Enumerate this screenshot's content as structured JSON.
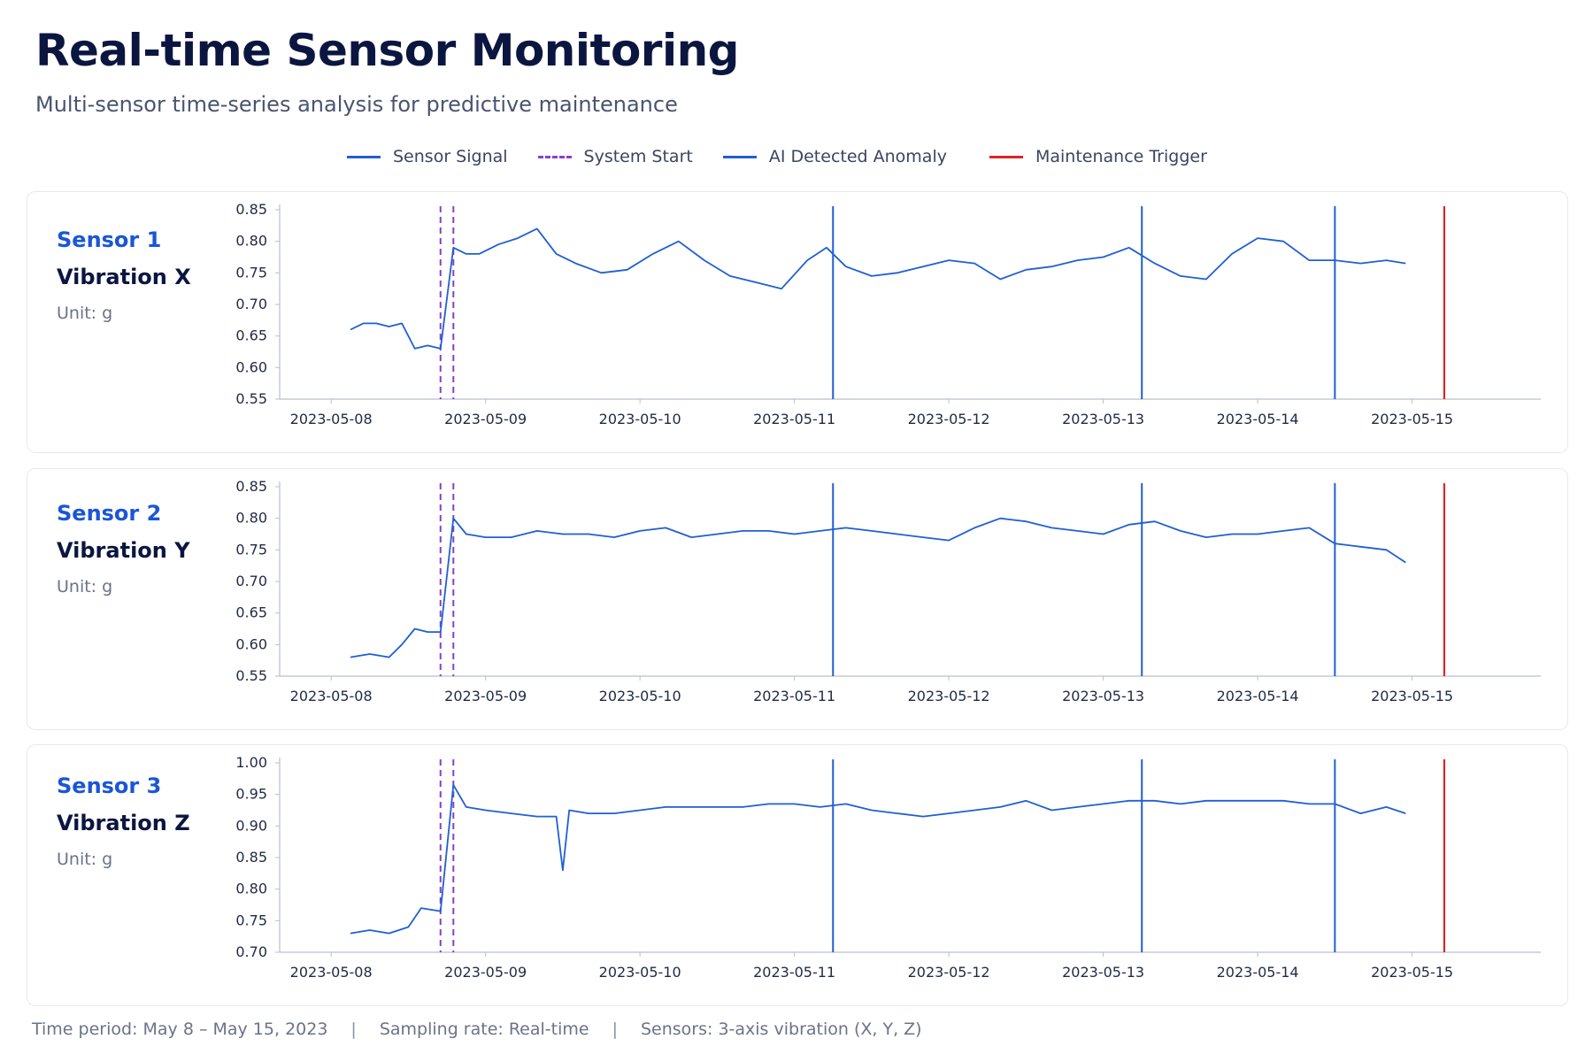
{
  "header": {
    "title": "Real-time Sensor Monitoring",
    "subtitle": "Multi-sensor time-series analysis for predictive maintenance"
  },
  "legend": [
    {
      "label": "Sensor Signal",
      "style": "solid",
      "color": "#1f5fd6"
    },
    {
      "label": "System Start",
      "style": "dashed",
      "color": "#8a3fc8"
    },
    {
      "label": "AI Detected Anomaly",
      "style": "solid",
      "color": "#1f5fd6"
    },
    {
      "label": "Maintenance Trigger",
      "style": "solid",
      "color": "#e02424"
    }
  ],
  "colors": {
    "signal": "#1f5fd6",
    "system_start": "#8a3fc8",
    "anomaly": "#1f5fd6",
    "maintenance": "#e02424",
    "sensor_id": "#1a56d6"
  },
  "panels": [
    {
      "sensor_id": "Sensor 1",
      "name": "Vibration X",
      "unit": "Unit: g"
    },
    {
      "sensor_id": "Sensor 2",
      "name": "Vibration Y",
      "unit": "Unit: g"
    },
    {
      "sensor_id": "Sensor 3",
      "name": "Vibration Z",
      "unit": "Unit: g"
    }
  ],
  "footer": {
    "period": "Time period: May 8 – May 15, 2023",
    "sampling": "Sampling rate: Real-time",
    "sensors": "Sensors: 3-axis vibration (X, Y, Z)",
    "separator": "|"
  },
  "chart_data": [
    {
      "type": "line",
      "title": "Vibration X",
      "x_type": "date",
      "x_ticks": [
        "2023-05-08",
        "2023-05-09",
        "2023-05-10",
        "2023-05-11",
        "2023-05-12",
        "2023-05-13",
        "2023-05-14",
        "2023-05-15"
      ],
      "xlim": [
        "2023-05-07 16:00",
        "2023-05-15 20:00"
      ],
      "y_ticks": [
        "0.55",
        "0.60",
        "0.65",
        "0.70",
        "0.75",
        "0.80",
        "0.85"
      ],
      "ylim": [
        0.55,
        0.85
      ],
      "system_start": [
        "2023-05-08 17:00",
        "2023-05-08 19:00"
      ],
      "anomalies": [
        "2023-05-11 06:00",
        "2023-05-13 06:00",
        "2023-05-14 12:00"
      ],
      "maintenance_trigger": "2023-05-15 05:00",
      "series": [
        {
          "x": [
            "2023-05-08 03:00",
            "2023-05-08 05:00",
            "2023-05-08 07:00",
            "2023-05-08 09:00",
            "2023-05-08 11:00",
            "2023-05-08 13:00",
            "2023-05-08 15:00",
            "2023-05-08 17:00",
            "2023-05-08 19:00",
            "2023-05-08 21:00",
            "2023-05-08 23:00",
            "2023-05-09 02:00",
            "2023-05-09 05:00",
            "2023-05-09 08:00",
            "2023-05-09 11:00",
            "2023-05-09 14:00",
            "2023-05-09 18:00",
            "2023-05-09 22:00",
            "2023-05-10 02:00",
            "2023-05-10 06:00",
            "2023-05-10 10:00",
            "2023-05-10 14:00",
            "2023-05-10 18:00",
            "2023-05-10 22:00",
            "2023-05-11 02:00",
            "2023-05-11 05:00",
            "2023-05-11 08:00",
            "2023-05-11 12:00",
            "2023-05-11 16:00",
            "2023-05-11 20:00",
            "2023-05-12 00:00",
            "2023-05-12 04:00",
            "2023-05-12 08:00",
            "2023-05-12 12:00",
            "2023-05-12 16:00",
            "2023-05-12 20:00",
            "2023-05-13 00:00",
            "2023-05-13 04:00",
            "2023-05-13 08:00",
            "2023-05-13 12:00",
            "2023-05-13 16:00",
            "2023-05-13 20:00",
            "2023-05-14 00:00",
            "2023-05-14 04:00",
            "2023-05-14 08:00",
            "2023-05-14 12:00",
            "2023-05-14 16:00",
            "2023-05-14 20:00",
            "2023-05-14 23:00"
          ],
          "values": [
            0.66,
            0.67,
            0.67,
            0.665,
            0.67,
            0.63,
            0.635,
            0.63,
            0.79,
            0.78,
            0.78,
            0.795,
            0.805,
            0.82,
            0.78,
            0.765,
            0.75,
            0.755,
            0.78,
            0.8,
            0.77,
            0.745,
            0.735,
            0.725,
            0.77,
            0.79,
            0.76,
            0.745,
            0.75,
            0.76,
            0.77,
            0.765,
            0.74,
            0.755,
            0.76,
            0.77,
            0.775,
            0.79,
            0.765,
            0.745,
            0.74,
            0.78,
            0.805,
            0.8,
            0.77,
            0.77,
            0.765,
            0.77,
            0.765
          ]
        }
      ]
    },
    {
      "type": "line",
      "title": "Vibration Y",
      "x_type": "date",
      "x_ticks": [
        "2023-05-08",
        "2023-05-09",
        "2023-05-10",
        "2023-05-11",
        "2023-05-12",
        "2023-05-13",
        "2023-05-14",
        "2023-05-15"
      ],
      "xlim": [
        "2023-05-07 16:00",
        "2023-05-15 20:00"
      ],
      "y_ticks": [
        "0.55",
        "0.60",
        "0.65",
        "0.70",
        "0.75",
        "0.80",
        "0.85"
      ],
      "ylim": [
        0.55,
        0.85
      ],
      "system_start": [
        "2023-05-08 17:00",
        "2023-05-08 19:00"
      ],
      "anomalies": [
        "2023-05-11 06:00",
        "2023-05-13 06:00",
        "2023-05-14 12:00"
      ],
      "maintenance_trigger": "2023-05-15 05:00",
      "series": [
        {
          "x": [
            "2023-05-08 03:00",
            "2023-05-08 06:00",
            "2023-05-08 09:00",
            "2023-05-08 11:00",
            "2023-05-08 13:00",
            "2023-05-08 15:00",
            "2023-05-08 17:00",
            "2023-05-08 19:00",
            "2023-05-08 21:00",
            "2023-05-09 00:00",
            "2023-05-09 04:00",
            "2023-05-09 08:00",
            "2023-05-09 12:00",
            "2023-05-09 16:00",
            "2023-05-09 20:00",
            "2023-05-10 00:00",
            "2023-05-10 04:00",
            "2023-05-10 08:00",
            "2023-05-10 12:00",
            "2023-05-10 16:00",
            "2023-05-10 20:00",
            "2023-05-11 00:00",
            "2023-05-11 04:00",
            "2023-05-11 08:00",
            "2023-05-11 12:00",
            "2023-05-11 16:00",
            "2023-05-11 20:00",
            "2023-05-12 00:00",
            "2023-05-12 04:00",
            "2023-05-12 08:00",
            "2023-05-12 12:00",
            "2023-05-12 16:00",
            "2023-05-12 20:00",
            "2023-05-13 00:00",
            "2023-05-13 04:00",
            "2023-05-13 08:00",
            "2023-05-13 12:00",
            "2023-05-13 16:00",
            "2023-05-13 20:00",
            "2023-05-14 00:00",
            "2023-05-14 04:00",
            "2023-05-14 08:00",
            "2023-05-14 12:00",
            "2023-05-14 16:00",
            "2023-05-14 20:00",
            "2023-05-14 23:00"
          ],
          "values": [
            0.58,
            0.585,
            0.58,
            0.6,
            0.625,
            0.62,
            0.62,
            0.8,
            0.775,
            0.77,
            0.77,
            0.78,
            0.775,
            0.775,
            0.77,
            0.78,
            0.785,
            0.77,
            0.775,
            0.78,
            0.78,
            0.775,
            0.78,
            0.785,
            0.78,
            0.775,
            0.77,
            0.765,
            0.785,
            0.8,
            0.795,
            0.785,
            0.78,
            0.775,
            0.79,
            0.795,
            0.78,
            0.77,
            0.775,
            0.775,
            0.78,
            0.785,
            0.76,
            0.755,
            0.75,
            0.73
          ]
        }
      ]
    },
    {
      "type": "line",
      "title": "Vibration Z",
      "x_type": "date",
      "x_ticks": [
        "2023-05-08",
        "2023-05-09",
        "2023-05-10",
        "2023-05-11",
        "2023-05-12",
        "2023-05-13",
        "2023-05-14",
        "2023-05-15"
      ],
      "xlim": [
        "2023-05-07 16:00",
        "2023-05-15 20:00"
      ],
      "y_ticks": [
        "0.70",
        "0.75",
        "0.80",
        "0.85",
        "0.90",
        "0.95",
        "1.00"
      ],
      "ylim": [
        0.7,
        1.0
      ],
      "system_start": [
        "2023-05-08 17:00",
        "2023-05-08 19:00"
      ],
      "anomalies": [
        "2023-05-11 06:00",
        "2023-05-13 06:00",
        "2023-05-14 12:00"
      ],
      "maintenance_trigger": "2023-05-15 05:00",
      "series": [
        {
          "x": [
            "2023-05-08 03:00",
            "2023-05-08 06:00",
            "2023-05-08 09:00",
            "2023-05-08 12:00",
            "2023-05-08 14:00",
            "2023-05-08 17:00",
            "2023-05-08 19:00",
            "2023-05-08 21:00",
            "2023-05-09 00:00",
            "2023-05-09 04:00",
            "2023-05-09 08:00",
            "2023-05-09 11:00",
            "2023-05-09 12:00",
            "2023-05-09 13:00",
            "2023-05-09 16:00",
            "2023-05-09 20:00",
            "2023-05-10 00:00",
            "2023-05-10 04:00",
            "2023-05-10 08:00",
            "2023-05-10 12:00",
            "2023-05-10 16:00",
            "2023-05-10 20:00",
            "2023-05-11 00:00",
            "2023-05-11 04:00",
            "2023-05-11 08:00",
            "2023-05-11 12:00",
            "2023-05-11 16:00",
            "2023-05-11 20:00",
            "2023-05-12 00:00",
            "2023-05-12 04:00",
            "2023-05-12 08:00",
            "2023-05-12 12:00",
            "2023-05-12 16:00",
            "2023-05-12 20:00",
            "2023-05-13 00:00",
            "2023-05-13 04:00",
            "2023-05-13 08:00",
            "2023-05-13 12:00",
            "2023-05-13 16:00",
            "2023-05-13 20:00",
            "2023-05-14 00:00",
            "2023-05-14 04:00",
            "2023-05-14 08:00",
            "2023-05-14 12:00",
            "2023-05-14 16:00",
            "2023-05-14 20:00",
            "2023-05-14 23:00"
          ],
          "values": [
            0.73,
            0.735,
            0.73,
            0.74,
            0.77,
            0.765,
            0.965,
            0.93,
            0.925,
            0.92,
            0.915,
            0.915,
            0.83,
            0.925,
            0.92,
            0.92,
            0.925,
            0.93,
            0.93,
            0.93,
            0.93,
            0.935,
            0.935,
            0.93,
            0.935,
            0.925,
            0.92,
            0.915,
            0.92,
            0.925,
            0.93,
            0.94,
            0.925,
            0.93,
            0.935,
            0.94,
            0.94,
            0.935,
            0.94,
            0.94,
            0.94,
            0.94,
            0.935,
            0.935,
            0.92,
            0.93,
            0.92
          ]
        }
      ]
    }
  ]
}
